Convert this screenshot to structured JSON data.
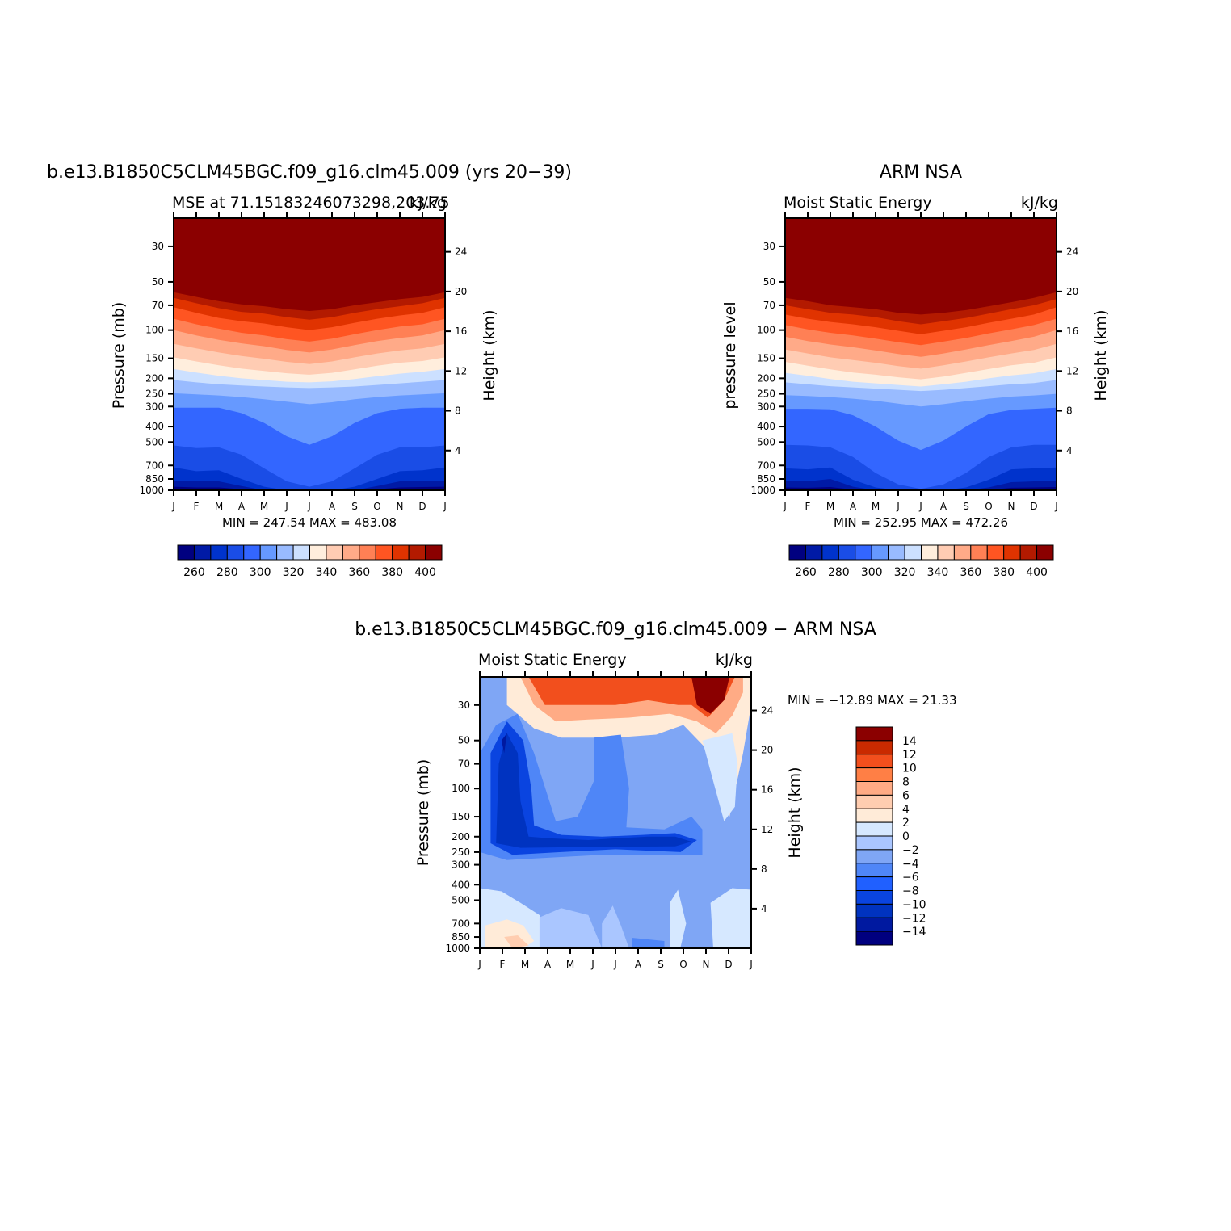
{
  "palette": {
    "levels_main": [
      "#000080",
      "#001aa6",
      "#0033cc",
      "#1a4de6",
      "#3366ff",
      "#6699ff",
      "#99bbff",
      "#cce0ff",
      "#ffeedd",
      "#ffccb3",
      "#ffaa88",
      "#ff8055",
      "#ff5522",
      "#e03300",
      "#b31a00",
      "#8b0000"
    ],
    "levels_diff": [
      "#00007f",
      "#0019a0",
      "#0033c0",
      "#0a44e0",
      "#2060ff",
      "#4f86f7",
      "#7fa6f5",
      "#aac6ff",
      "#d6e8ff",
      "#ffebd8",
      "#ffcdb0",
      "#ffab85",
      "#ff7f45",
      "#f24f1d",
      "#c92a00",
      "#8b0000"
    ]
  },
  "months": [
    "J",
    "F",
    "M",
    "A",
    "M",
    "J",
    "J",
    "A",
    "S",
    "O",
    "N",
    "D",
    "J"
  ],
  "pressure_ticks": [
    "30",
    "50",
    "70",
    "100",
    "150",
    "200",
    "250",
    "300",
    "400",
    "500",
    "700",
    "850",
    "1000"
  ],
  "height_ticks": [
    "24",
    "20",
    "16",
    "12",
    "8",
    "4"
  ],
  "panels": [
    {
      "id": "model",
      "title": "b.e13.B1850C5CLM45BGC.f09_g16.clm45.009 (yrs 20−39)",
      "left_sub": "MSE at 71.15183246073298,203.75",
      "right_sub": "kJ/kg",
      "ylabel": "Pressure (mb)",
      "ylabel2": "Height (km)",
      "minmax": "MIN = 247.54 MAX = 483.08",
      "cb_labels": [
        "260",
        "280",
        "300",
        "320",
        "340",
        "360",
        "380",
        "400"
      ]
    },
    {
      "id": "obs",
      "title": "ARM NSA",
      "left_sub": "Moist Static Energy",
      "right_sub": "kJ/kg",
      "ylabel": "pressure level",
      "ylabel2": "Height (km)",
      "minmax": "MIN = 252.95 MAX = 472.26",
      "cb_labels": [
        "260",
        "280",
        "300",
        "320",
        "340",
        "360",
        "380",
        "400"
      ]
    },
    {
      "id": "diff",
      "title": "b.e13.B1850C5CLM45BGC.f09_g16.clm45.009 − ARM NSA",
      "left_sub": "Moist Static Energy",
      "right_sub": "kJ/kg",
      "ylabel": "Pressure (mb)",
      "ylabel2": "Height (km)",
      "minmax": "MIN = −12.89 MAX = 21.33",
      "cb_labels": [
        "14",
        "12",
        "10",
        "8",
        "6",
        "4",
        "2",
        "0",
        "−2",
        "−4",
        "−6",
        "−8",
        "−10",
        "−12",
        "−14"
      ]
    }
  ],
  "chart_data": [
    {
      "type": "heatmap",
      "title": "b.e13.B1850C5CLM45BGC.f09_g16.clm45.009 (yrs 20−39)",
      "subtitle": "MSE at 71.15183246073298,203.75",
      "units": "kJ/kg",
      "x": [
        "J",
        "F",
        "M",
        "A",
        "M",
        "J",
        "J",
        "A",
        "S",
        "O",
        "N",
        "D",
        "J"
      ],
      "y_pressure_mb": [
        30,
        50,
        70,
        100,
        150,
        200,
        250,
        300,
        400,
        500,
        700,
        850,
        1000
      ],
      "y2_height_km": [
        24,
        20,
        16,
        12,
        8,
        4
      ],
      "levels": [
        250,
        260,
        270,
        280,
        290,
        300,
        310,
        320,
        330,
        340,
        350,
        360,
        370,
        380,
        390,
        400
      ],
      "min": 247.54,
      "max": 483.08,
      "contour_boundaries_pressure_mb": {
        "400": [
          58,
          62,
          66,
          69,
          71,
          74,
          76,
          74,
          70,
          67,
          64,
          62,
          58
        ],
        "390": [
          63,
          68,
          73,
          77,
          79,
          83,
          86,
          83,
          78,
          74,
          71,
          68,
          63
        ],
        "380": [
          72,
          78,
          84,
          88,
          91,
          96,
          100,
          96,
          90,
          85,
          81,
          78,
          72
        ],
        "370": [
          85,
          92,
          98,
          104,
          108,
          114,
          118,
          113,
          106,
          100,
          95,
          92,
          85
        ],
        "360": [
          100,
          108,
          115,
          121,
          126,
          133,
          138,
          132,
          124,
          117,
          112,
          108,
          100
        ],
        "350": [
          122,
          130,
          138,
          145,
          151,
          158,
          163,
          157,
          148,
          140,
          134,
          130,
          122
        ],
        "340": [
          148,
          157,
          166,
          174,
          180,
          186,
          190,
          185,
          176,
          167,
          160,
          156,
          148
        ],
        "330": [
          175,
          184,
          193,
          200,
          205,
          210,
          212,
          209,
          202,
          194,
          187,
          182,
          175
        ],
        "320": [
          205,
          212,
          218,
          222,
          225,
          228,
          230,
          228,
          225,
          220,
          215,
          210,
          205
        ],
        "310": [
          248,
          252,
          256,
          262,
          270,
          280,
          290,
          282,
          270,
          262,
          256,
          252,
          248
        ],
        "300": [
          305,
          305,
          305,
          330,
          380,
          460,
          520,
          460,
          380,
          330,
          310,
          305,
          305
        ],
        "290": [
          525,
          545,
          540,
          600,
          730,
          880,
          950,
          880,
          730,
          600,
          540,
          540,
          525
        ],
        "280": [
          720,
          760,
          750,
          850,
          950,
          1000,
          1000,
          1000,
          950,
          850,
          760,
          750,
          720
        ],
        "270": [
          870,
          880,
          880,
          940,
          1000,
          1000,
          1000,
          1000,
          1000,
          940,
          880,
          880,
          870
        ],
        "260": [
          950,
          960,
          960,
          985,
          1000,
          1000,
          1000,
          1000,
          1000,
          985,
          960,
          955,
          950
        ]
      }
    },
    {
      "type": "heatmap",
      "title": "ARM NSA",
      "subtitle": "Moist Static Energy",
      "units": "kJ/kg",
      "x": [
        "J",
        "F",
        "M",
        "A",
        "M",
        "J",
        "J",
        "A",
        "S",
        "O",
        "N",
        "D",
        "J"
      ],
      "y_pressure_mb": [
        30,
        50,
        70,
        100,
        150,
        200,
        250,
        300,
        400,
        500,
        700,
        850,
        1000
      ],
      "y2_height_km": [
        24,
        20,
        16,
        12,
        8,
        4
      ],
      "levels": [
        250,
        260,
        270,
        280,
        290,
        300,
        310,
        320,
        330,
        340,
        350,
        360,
        370,
        380,
        390,
        400
      ],
      "min": 252.95,
      "max": 472.26,
      "contour_boundaries_pressure_mb": {
        "400": [
          63,
          66,
          70,
          72,
          74,
          78,
          80,
          78,
          75,
          71,
          67,
          63,
          58
        ],
        "390": [
          70,
          74,
          78,
          80,
          83,
          88,
          92,
          88,
          84,
          79,
          74,
          70,
          64
        ],
        "380": [
          80,
          85,
          89,
          92,
          96,
          101,
          106,
          101,
          96,
          90,
          85,
          80,
          72
        ],
        "370": [
          93,
          99,
          104,
          108,
          113,
          119,
          124,
          118,
          112,
          105,
          99,
          93,
          85
        ],
        "360": [
          110,
          117,
          123,
          128,
          134,
          141,
          147,
          140,
          132,
          124,
          117,
          110,
          100
        ],
        "350": [
          132,
          140,
          148,
          154,
          160,
          168,
          174,
          166,
          157,
          148,
          140,
          133,
          122
        ],
        "340": [
          158,
          167,
          176,
          184,
          190,
          197,
          203,
          195,
          185,
          175,
          166,
          160,
          148
        ],
        "330": [
          185,
          193,
          202,
          210,
          215,
          220,
          225,
          218,
          210,
          200,
          192,
          186,
          175
        ],
        "320": [
          212,
          218,
          224,
          228,
          232,
          236,
          240,
          236,
          230,
          224,
          218,
          214,
          205
        ],
        "310": [
          255,
          258,
          262,
          268,
          276,
          288,
          300,
          290,
          278,
          268,
          260,
          256,
          250
        ],
        "300": [
          310,
          310,
          312,
          340,
          400,
          490,
          560,
          490,
          400,
          335,
          315,
          310,
          305
        ],
        "290": [
          520,
          525,
          540,
          620,
          780,
          920,
          980,
          920,
          780,
          620,
          540,
          520,
          520
        ],
        "280": [
          730,
          740,
          720,
          860,
          960,
          1000,
          1000,
          1000,
          960,
          860,
          740,
          730,
          720
        ],
        "270": [
          880,
          880,
          850,
          950,
          1000,
          1000,
          1000,
          1000,
          1000,
          960,
          890,
          880,
          870
        ],
        "260": [
          960,
          965,
          955,
          990,
          1000,
          1000,
          1000,
          1000,
          1000,
          995,
          965,
          960,
          955
        ]
      }
    },
    {
      "type": "heatmap",
      "title": "b.e13.B1850C5CLM45BGC.f09_g16.clm45.009 − ARM NSA",
      "subtitle": "Moist Static Energy",
      "units": "kJ/kg",
      "x": [
        "J",
        "F",
        "M",
        "A",
        "M",
        "J",
        "J",
        "A",
        "S",
        "O",
        "N",
        "D",
        "J"
      ],
      "y_pressure_mb": [
        30,
        50,
        70,
        100,
        150,
        200,
        250,
        300,
        400,
        500,
        700,
        850,
        1000
      ],
      "y2_height_km": [
        24,
        20,
        16,
        12,
        8,
        4
      ],
      "levels": [
        -14,
        -12,
        -10,
        -8,
        -6,
        -4,
        -2,
        0,
        2,
        4,
        6,
        8,
        10,
        12,
        14
      ],
      "min": -12.89,
      "max": 21.33,
      "cb_position": "right",
      "minmax_position": "top-right",
      "features": [
        {
          "region": "upper stratosphere (30-45 mb), Mar-Sep",
          "value_range": "2 to 12"
        },
        {
          "region": "upper stratosphere, Nov",
          "value_range": "14 to 21.33"
        },
        {
          "region": "Jan-Feb column 40-250 mb",
          "value_range": "-12.89 to -8"
        },
        {
          "region": "tropopause band 180-250 mb",
          "value_range": "-10 to -8"
        },
        {
          "region": "Jun-Aug mid-stratosphere 50-150 mb",
          "value_range": "-6 to -4"
        },
        {
          "region": "Nov-Dec 60-150 mb",
          "value_range": "0 to 4"
        },
        {
          "region": "lower troposphere Jan-Mar 500-1000 mb",
          "value_range": "0 to 4"
        },
        {
          "region": "lower troposphere Apr-Oct 400-1000 mb",
          "value_range": "-4 to 0"
        },
        {
          "region": "lower troposphere Oct-Dec 500-1000 mb",
          "value_range": "0 to 2"
        }
      ]
    }
  ]
}
